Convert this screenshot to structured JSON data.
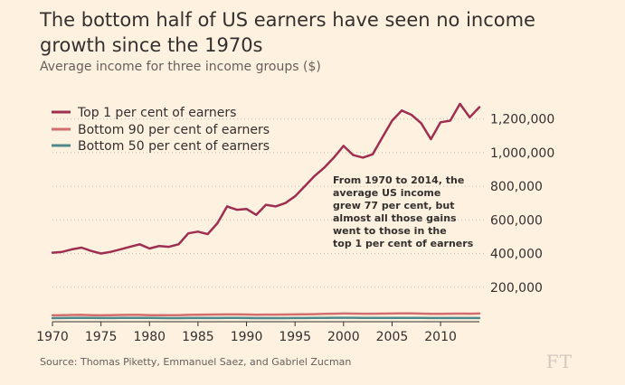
{
  "chart_data": {
    "type": "line",
    "title": "The bottom half of US earners have seen no income growth since the 1970s",
    "subtitle": "Average income for three income groups ($)",
    "source": "Source: Thomas Piketty, Emmanuel Saez, and Gabriel Zucman",
    "logo": "FT",
    "xlabel": "",
    "ylabel": "",
    "xlim": [
      1970,
      2014
    ],
    "ylim": [
      0,
      1300000
    ],
    "x_ticks": [
      1970,
      1975,
      1980,
      1985,
      1990,
      1995,
      2000,
      2005,
      2010
    ],
    "x_tick_labels": [
      "1970",
      "1975",
      "1980",
      "1985",
      "1990",
      "1995",
      "2000",
      "2005",
      "2010"
    ],
    "y_ticks": [
      200000,
      400000,
      600000,
      800000,
      1000000,
      1200000
    ],
    "y_tick_labels": [
      "200,000",
      "400,000",
      "600,000",
      "800,000",
      "1,000,000",
      "1,200,000"
    ],
    "grid": true,
    "legend_position": "top-left",
    "annotation": [
      "From 1970 to 2014, the",
      "average US income",
      "grew 77 per cent, but",
      "almost all those gains",
      "went to those in the",
      "top 1 per cent of earners"
    ],
    "x": [
      1970,
      1971,
      1972,
      1973,
      1974,
      1975,
      1976,
      1977,
      1978,
      1979,
      1980,
      1981,
      1982,
      1983,
      1984,
      1985,
      1986,
      1987,
      1988,
      1989,
      1990,
      1991,
      1992,
      1993,
      1994,
      1995,
      1996,
      1997,
      1998,
      1999,
      2000,
      2001,
      2002,
      2003,
      2004,
      2005,
      2006,
      2007,
      2008,
      2009,
      2010,
      2011,
      2012,
      2013,
      2014
    ],
    "series": [
      {
        "name": "Top 1 per cent of earners",
        "color": "#9e2f50",
        "values": [
          405000,
          410000,
          425000,
          435000,
          415000,
          400000,
          410000,
          425000,
          440000,
          455000,
          430000,
          445000,
          440000,
          455000,
          520000,
          530000,
          515000,
          580000,
          680000,
          660000,
          665000,
          630000,
          690000,
          680000,
          700000,
          740000,
          800000,
          860000,
          910000,
          970000,
          1040000,
          985000,
          970000,
          990000,
          1090000,
          1190000,
          1250000,
          1225000,
          1175000,
          1080000,
          1180000,
          1190000,
          1290000,
          1210000,
          1270000
        ]
      },
      {
        "name": "Bottom 90 per cent of earners",
        "color": "#d26e6e",
        "values": [
          33000,
          34000,
          35000,
          35500,
          34000,
          33000,
          34000,
          35000,
          35500,
          35500,
          34000,
          34000,
          33500,
          34000,
          35500,
          36000,
          37000,
          37500,
          38000,
          38000,
          37500,
          36500,
          37000,
          37000,
          37500,
          38000,
          39000,
          40000,
          41500,
          42500,
          43500,
          43000,
          42500,
          42500,
          43000,
          43500,
          44000,
          44000,
          43000,
          41500,
          42000,
          42500,
          43000,
          42500,
          43500
        ]
      },
      {
        "name": "Bottom 50 per cent of earners",
        "color": "#4e8a8c",
        "values": [
          16000,
          16500,
          17000,
          17500,
          17000,
          16500,
          16500,
          17000,
          17500,
          17500,
          17000,
          16500,
          16000,
          16000,
          16500,
          16500,
          16500,
          16500,
          17000,
          17000,
          16500,
          16000,
          16000,
          16000,
          16000,
          16500,
          16500,
          17000,
          17500,
          18000,
          18500,
          18000,
          17500,
          17500,
          17500,
          17500,
          17500,
          17500,
          17000,
          16500,
          16500,
          16500,
          16500,
          16500,
          16500
        ]
      }
    ]
  }
}
